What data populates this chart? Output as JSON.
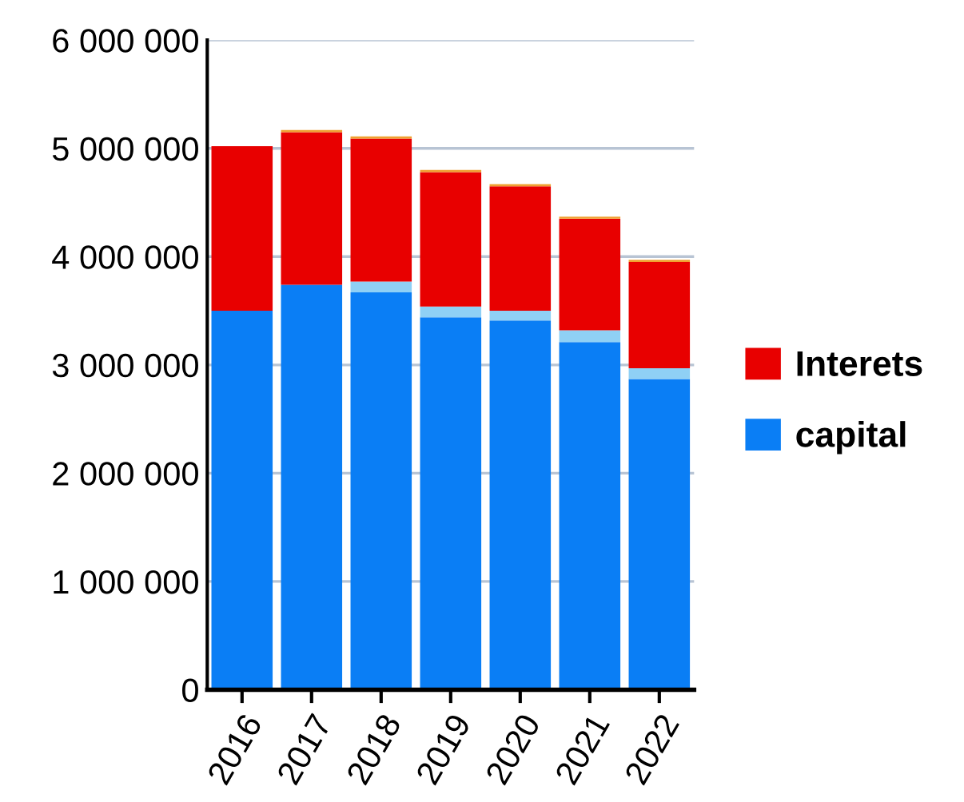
{
  "chart_data": {
    "type": "bar",
    "stacked": true,
    "categories": [
      "2016",
      "2017",
      "2018",
      "2019",
      "2020",
      "2021",
      "2022"
    ],
    "series": [
      {
        "name": "capital",
        "color": "#0a7ef5",
        "values": [
          3500000,
          3740000,
          3670000,
          3440000,
          3410000,
          3210000,
          2870000
        ]
      },
      {
        "color": "#8fd0f5",
        "values": [
          0,
          0,
          100000,
          100000,
          90000,
          110000,
          100000
        ]
      },
      {
        "name": "Interets",
        "color": "#e80000",
        "values": [
          1520000,
          1410000,
          1320000,
          1240000,
          1150000,
          1030000,
          980000
        ]
      },
      {
        "color": "#f0a030",
        "values": [
          0,
          20000,
          20000,
          20000,
          20000,
          20000,
          20000
        ]
      }
    ],
    "ylim": [
      0,
      6000000
    ],
    "yticks": [
      {
        "value": 0,
        "label": "0"
      },
      {
        "value": 1000000,
        "label": "1 000 000"
      },
      {
        "value": 2000000,
        "label": "2 000 000"
      },
      {
        "value": 3000000,
        "label": "3 000 000"
      },
      {
        "value": 4000000,
        "label": "4 000 000"
      },
      {
        "value": 5000000,
        "label": "5 000 000"
      },
      {
        "value": 6000000,
        "label": "6 000 000"
      }
    ],
    "grid": "y",
    "legend": "right"
  }
}
